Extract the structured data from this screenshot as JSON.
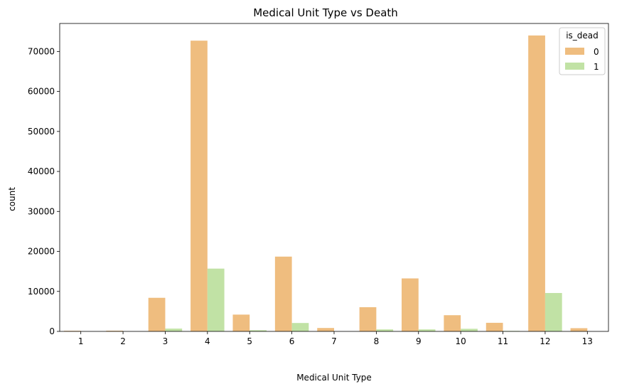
{
  "chart_data": {
    "type": "bar",
    "title": "Medical Unit Type vs Death",
    "xlabel": "Medical Unit Type",
    "ylabel": "count",
    "categories": [
      "1",
      "2",
      "3",
      "4",
      "5",
      "6",
      "7",
      "8",
      "9",
      "10",
      "11",
      "12",
      "13"
    ],
    "series": [
      {
        "name": "0",
        "color": "#efbd7f",
        "values": [
          150,
          170,
          8400,
          72700,
          4200,
          18700,
          850,
          6050,
          13250,
          4050,
          2150,
          74000,
          800
        ]
      },
      {
        "name": "1",
        "color": "#c1e2a5",
        "values": [
          0,
          0,
          700,
          15700,
          300,
          2100,
          0,
          500,
          500,
          650,
          120,
          9600,
          0
        ]
      }
    ],
    "ylim": [
      0,
      77000
    ],
    "yticks": [
      0,
      10000,
      20000,
      30000,
      40000,
      50000,
      60000,
      70000
    ],
    "grid": false,
    "legend": {
      "title": "is_dead",
      "placement": "top-right"
    }
  }
}
